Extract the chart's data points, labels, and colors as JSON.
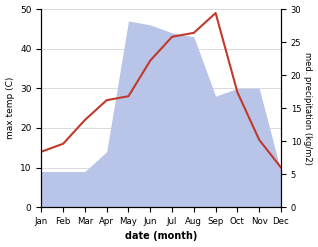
{
  "months": [
    "Jan",
    "Feb",
    "Mar",
    "Apr",
    "May",
    "Jun",
    "Jul",
    "Aug",
    "Sep",
    "Oct",
    "Nov",
    "Dec"
  ],
  "temp_C": [
    14,
    16,
    22,
    27,
    28,
    37,
    43,
    44,
    49,
    29,
    17,
    10
  ],
  "precip_kg": [
    9,
    9,
    9,
    14,
    47,
    46,
    44,
    43,
    28,
    30,
    30,
    9
  ],
  "temp_color": "#c0392b",
  "precip_color": "#b8c4e8",
  "xlabel": "date (month)",
  "ylabel_left": "max temp (C)",
  "ylabel_right": "med. precipitation (kg/m2)",
  "ylim_left": [
    0,
    50
  ],
  "ylim_right": [
    0,
    30
  ],
  "yticks_left": [
    0,
    10,
    20,
    30,
    40,
    50
  ],
  "yticks_right": [
    0,
    5,
    10,
    15,
    20,
    25,
    30
  ],
  "grid_color": "#cccccc"
}
